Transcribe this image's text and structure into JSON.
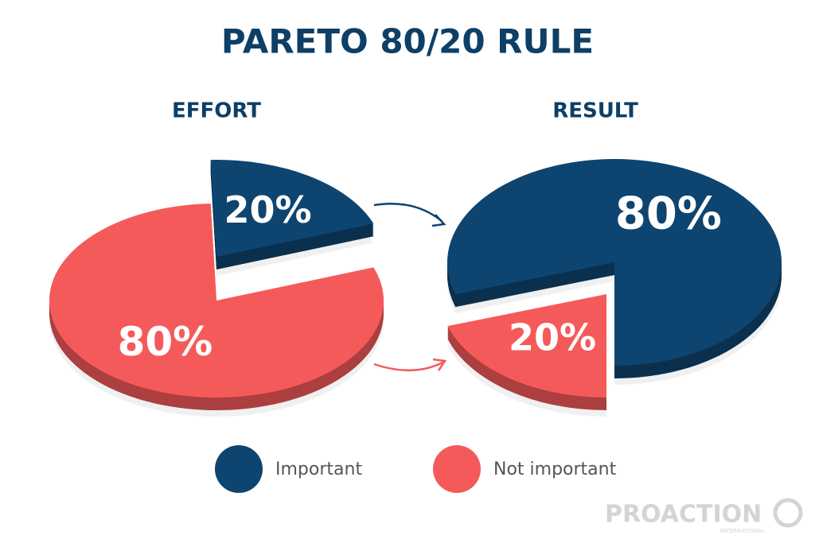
{
  "title": "PARETO 80/20 RULE",
  "chart_data": [
    {
      "type": "pie",
      "title": "EFFORT",
      "categories": [
        "Important",
        "Not important"
      ],
      "values": [
        20,
        80
      ],
      "value_labels": [
        "20%",
        "80%"
      ],
      "colors": [
        "#0e4470",
        "#f55a5a"
      ]
    },
    {
      "type": "pie",
      "title": "RESULT",
      "categories": [
        "Important",
        "Not important"
      ],
      "values": [
        80,
        20
      ],
      "value_labels": [
        "80%",
        "20%"
      ],
      "colors": [
        "#0e4470",
        "#f55a5a"
      ]
    }
  ],
  "logo": {
    "name": "PROACTION",
    "tagline": "INTERNATIONAL"
  }
}
